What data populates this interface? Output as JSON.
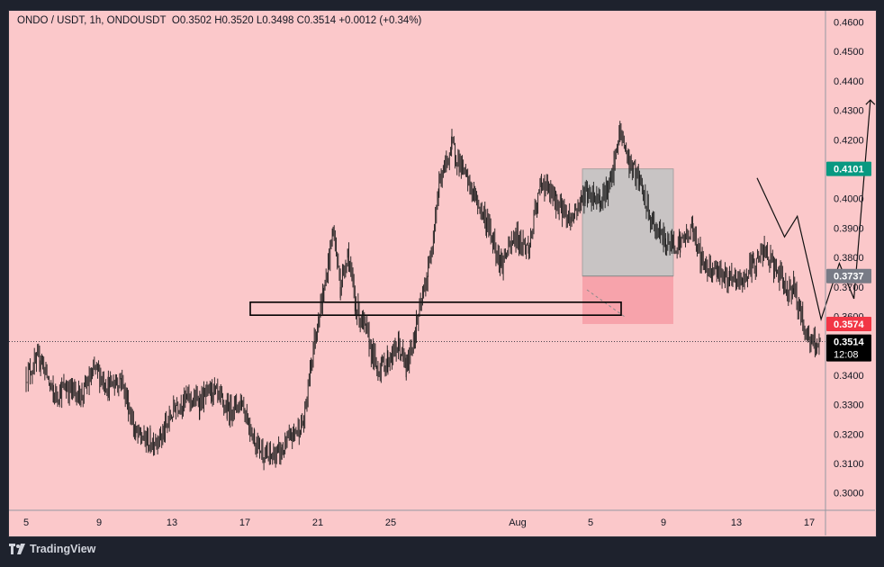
{
  "header": {
    "symbol": "ONDO / USDT, 1h, ONDOUSDT",
    "ohlc": "O0.3502  H0.3520  L0.3498  C0.3514  +0.0012 (+0.34%)"
  },
  "footer": {
    "brand": "TradingView"
  },
  "colors": {
    "background": "#fbc8ca",
    "candle": "#1a1a1a",
    "target_zone": "#c8c4c4",
    "stop_zone": "#f7a3ab",
    "take_profit_tag": "#089981",
    "entry_tag": "#787b86",
    "stop_tag": "#f23645",
    "last_price_tag": "#000000"
  },
  "chart_data": {
    "type": "line",
    "title": "ONDO / USDT, 1h, ONDOUSDT",
    "ylim": [
      0.295,
      0.4625
    ],
    "y_ticks": [
      "0.4600",
      "0.4500",
      "0.4400",
      "0.4300",
      "0.4200",
      "0.4100",
      "0.4000",
      "0.3900",
      "0.3800",
      "0.3700",
      "0.3600",
      "0.3500",
      "0.3400",
      "0.3300",
      "0.3200",
      "0.3100",
      "0.3000"
    ],
    "x_ticks": [
      "5",
      "9",
      "13",
      "17",
      "21",
      "25",
      "Aug",
      "5",
      "9",
      "13",
      "17"
    ],
    "grid": false,
    "series": [
      {
        "name": "",
        "x": [
          0,
          0.8,
          1.5,
          2.2,
          3.0,
          3.8,
          4.5,
          5.2,
          6.0,
          6.8,
          7.5,
          8.2,
          8.8,
          9.5,
          10.2,
          11.0,
          11.8,
          12.5,
          13.2,
          14.0,
          14.6,
          15.2,
          15.6,
          16.0,
          16.3,
          16.8,
          17.2,
          17.6,
          18.0,
          18.6,
          19.2,
          19.8,
          20.4,
          20.8,
          21.3,
          22.0,
          22.6,
          23.3,
          24.0,
          24.6,
          25.2,
          26.0,
          26.8,
          27.5,
          28.2,
          29.0,
          29.8,
          30.6,
          31.4,
          32.0,
          32.5,
          33.0,
          33.6,
          34.2,
          35.0,
          35.8,
          36.5,
          37.0,
          37.8,
          38.5,
          39.2,
          39.8,
          40.4,
          41.0,
          41.6,
          42.0,
          42.5,
          43.0,
          43.5
        ],
        "values": [
          0.34,
          0.346,
          0.333,
          0.336,
          0.333,
          0.342,
          0.336,
          0.339,
          0.32,
          0.317,
          0.32,
          0.33,
          0.332,
          0.331,
          0.335,
          0.328,
          0.331,
          0.318,
          0.312,
          0.314,
          0.32,
          0.324,
          0.345,
          0.36,
          0.368,
          0.39,
          0.37,
          0.382,
          0.364,
          0.355,
          0.342,
          0.345,
          0.35,
          0.342,
          0.355,
          0.375,
          0.405,
          0.418,
          0.408,
          0.4,
          0.392,
          0.378,
          0.387,
          0.383,
          0.406,
          0.399,
          0.393,
          0.402,
          0.4,
          0.405,
          0.423,
          0.412,
          0.405,
          0.392,
          0.385,
          0.385,
          0.39,
          0.378,
          0.376,
          0.372,
          0.372,
          0.378,
          0.382,
          0.376,
          0.369,
          0.37,
          0.358,
          0.35,
          0.3514
        ]
      }
    ],
    "zones": {
      "take_profit": 0.4101,
      "entry": 0.3737,
      "stop_loss": 0.3574,
      "support_box": [
        0.3604,
        0.3648
      ]
    },
    "projection": {
      "x": [
        40.0,
        41.5,
        42.2,
        43.5,
        44.5,
        45.3,
        46.2
      ],
      "values": [
        0.407,
        0.387,
        0.394,
        0.359,
        0.378,
        0.366,
        0.4335
      ]
    },
    "labels": {
      "take_profit": "0.4101",
      "entry": "0.3737",
      "stop_loss": "0.3574",
      "last_price": "0.3514",
      "countdown": "12:08"
    }
  }
}
